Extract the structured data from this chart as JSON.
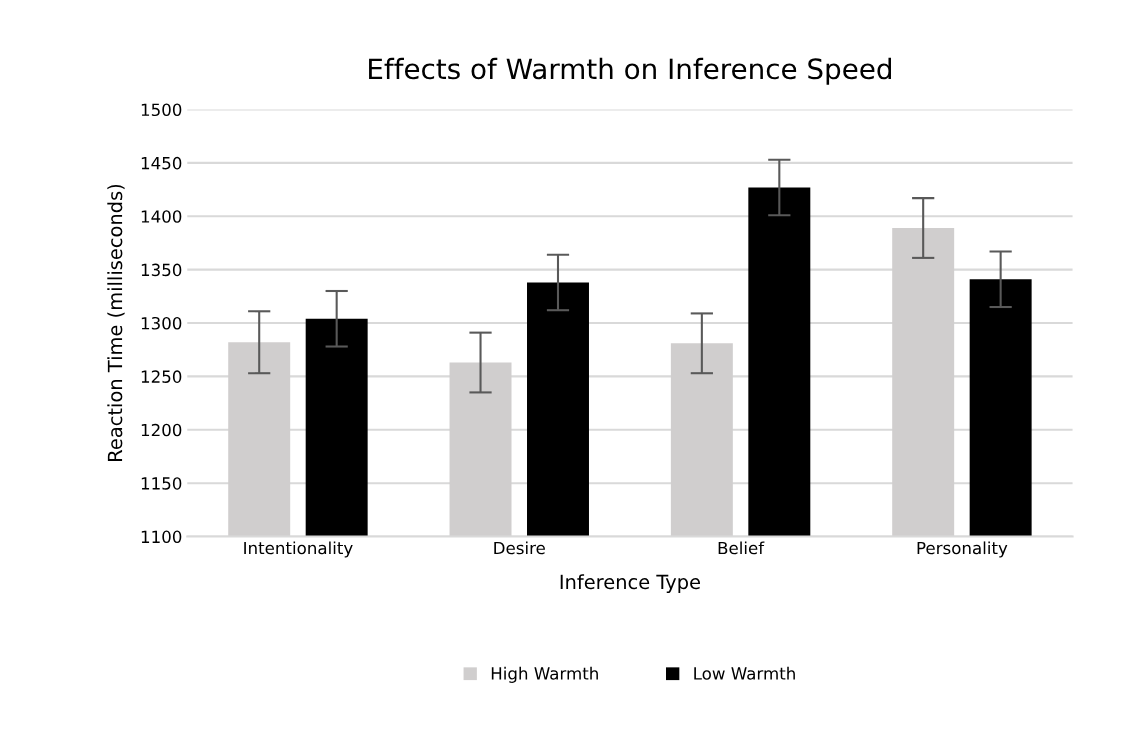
{
  "chart_data": {
    "type": "bar",
    "title": "Effects of Warmth on Inference Speed",
    "xlabel": "Inference Type",
    "ylabel": "Reaction Time (milliseconds)",
    "categories": [
      "Intentionality",
      "Desire",
      "Belief",
      "Personality"
    ],
    "series": [
      {
        "name": "High Warmth",
        "color": "#d0cece",
        "values": [
          1282,
          1263,
          1281,
          1389
        ],
        "errors": [
          29,
          28,
          28,
          28
        ]
      },
      {
        "name": "Low Warmth",
        "color": "#000000",
        "values": [
          1304,
          1338,
          1427,
          1341
        ],
        "errors": [
          26,
          26,
          26,
          26
        ]
      }
    ],
    "ylim": [
      1100,
      1500
    ],
    "yticks": [
      1100,
      1150,
      1200,
      1250,
      1300,
      1350,
      1400,
      1450,
      1500
    ],
    "grid": "y",
    "legend": "bottom"
  }
}
